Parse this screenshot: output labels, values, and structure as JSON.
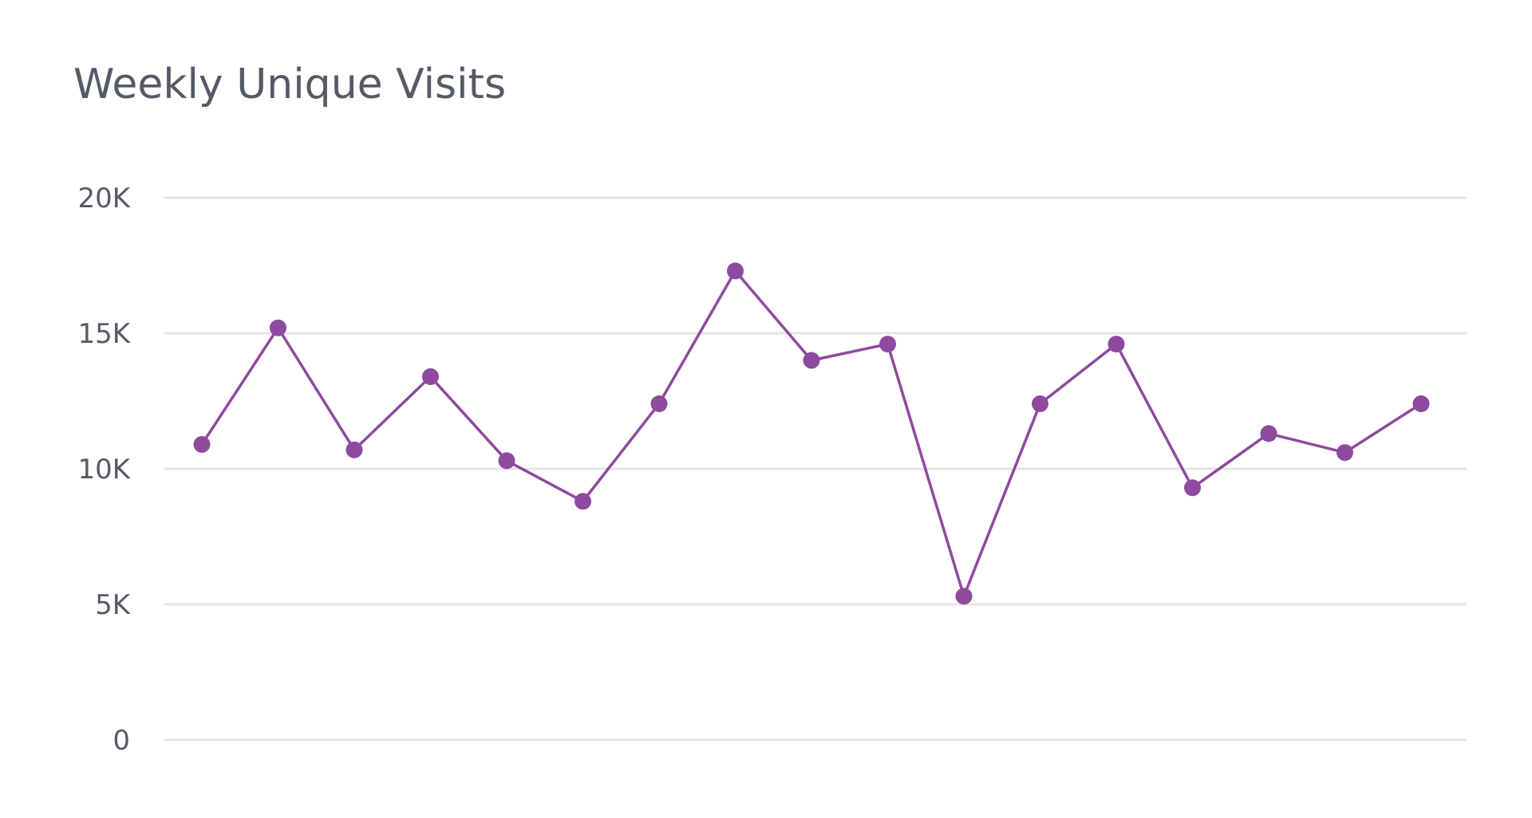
{
  "widget": {
    "title": "Weekly Unique Visits"
  },
  "colors": {
    "series": "#8e4a9e",
    "grid": "#e5e5e5",
    "text": "#555a66",
    "background": "#ffffff"
  },
  "chart_data": {
    "type": "line",
    "title": "Weekly Unique Visits",
    "xlabel": "",
    "ylabel": "",
    "x": [
      1,
      2,
      3,
      4,
      5,
      6,
      7,
      8,
      9,
      10,
      11,
      12,
      13,
      14,
      15,
      16,
      17
    ],
    "categories": [],
    "series": [
      {
        "name": "Weekly Unique Visits",
        "values": [
          10900,
          15200,
          10700,
          13400,
          10300,
          8800,
          12400,
          17300,
          14000,
          14600,
          5300,
          12400,
          14600,
          9300,
          11300,
          10600,
          12400
        ]
      }
    ],
    "yticks": [
      0,
      5000,
      10000,
      15000,
      20000
    ],
    "ytick_labels": [
      "0",
      "5K",
      "10K",
      "15K",
      "20K"
    ],
    "ylim": [
      0,
      20000
    ],
    "grid": "horizontal",
    "legend": "none",
    "markers": true
  }
}
